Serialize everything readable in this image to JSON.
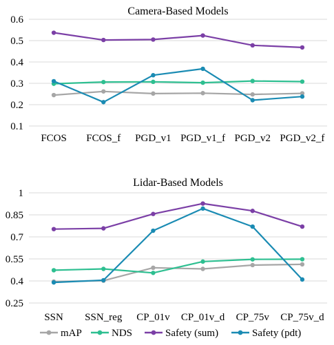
{
  "chart_data": [
    {
      "type": "line",
      "title": "Camera-Based Models",
      "categories": [
        "FCOS",
        "FCOS_f",
        "PGD_v1",
        "PGD_v1_f",
        "PGD_v2",
        "PGD_v2_f"
      ],
      "ylim": [
        0.1,
        0.6
      ],
      "yticks": [
        "0.1",
        "0.2",
        "0.3",
        "0.4",
        "0.5",
        "0.6"
      ],
      "ytick_values": [
        0.1,
        0.2,
        0.3,
        0.4,
        0.5,
        0.6
      ],
      "grid": true,
      "series": [
        {
          "name": "mAP",
          "color": "#a6a6a6",
          "values": [
            0.245,
            0.262,
            0.252,
            0.254,
            0.248,
            0.253
          ]
        },
        {
          "name": "NDS",
          "color": "#2ebf91",
          "values": [
            0.298,
            0.306,
            0.307,
            0.303,
            0.311,
            0.308
          ]
        },
        {
          "name": "Safety (sum)",
          "color": "#7b3fa6",
          "values": [
            0.537,
            0.503,
            0.505,
            0.524,
            0.478,
            0.468
          ]
        },
        {
          "name": "Safety (pdt)",
          "color": "#1a8bb3",
          "values": [
            0.31,
            0.212,
            0.338,
            0.368,
            0.221,
            0.238
          ]
        }
      ]
    },
    {
      "type": "line",
      "title": "Lidar-Based Models",
      "categories": [
        "SSN",
        "SSN_reg",
        "CP_01v",
        "CP_01v_d",
        "CP_75v",
        "CP_75v_d"
      ],
      "ylim": [
        0.25,
        1.0
      ],
      "yticks": [
        "0.25",
        "0.4",
        "0.55",
        "0.7",
        "0.85",
        "1"
      ],
      "ytick_values": [
        0.25,
        0.4,
        0.55,
        0.7,
        0.85,
        1.0
      ],
      "grid": true,
      "series": [
        {
          "name": "mAP",
          "color": "#a6a6a6",
          "values": [
            0.396,
            0.402,
            0.49,
            0.482,
            0.508,
            0.513
          ]
        },
        {
          "name": "NDS",
          "color": "#2ebf91",
          "values": [
            0.473,
            0.482,
            0.455,
            0.532,
            0.547,
            0.548
          ]
        },
        {
          "name": "Safety (sum)",
          "color": "#7b3fa6",
          "values": [
            0.753,
            0.758,
            0.856,
            0.927,
            0.877,
            0.77
          ]
        },
        {
          "name": "Safety (pdt)",
          "color": "#1a8bb3",
          "values": [
            0.39,
            0.405,
            0.742,
            0.893,
            0.77,
            0.41
          ]
        }
      ]
    }
  ],
  "legend": {
    "placement": "bottom",
    "items": [
      {
        "label": "mAP",
        "color": "#a6a6a6"
      },
      {
        "label": "NDS",
        "color": "#2ebf91"
      },
      {
        "label": "Safety (sum)",
        "color": "#7b3fa6"
      },
      {
        "label": "Safety (pdt)",
        "color": "#1a8bb3"
      }
    ]
  }
}
